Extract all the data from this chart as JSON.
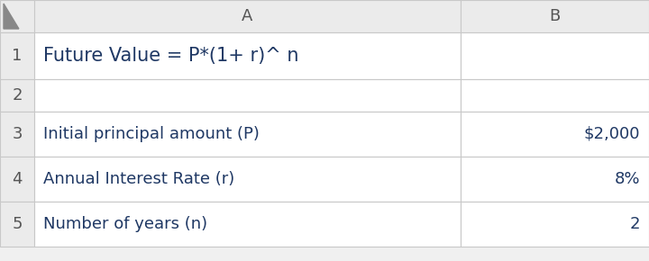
{
  "col_header_labels": [
    "A",
    "B"
  ],
  "row_numbers": [
    "1",
    "2",
    "3",
    "4",
    "5"
  ],
  "cell_data": [
    [
      "Future Value = P*(1+ r)^ n",
      ""
    ],
    [
      "",
      ""
    ],
    [
      "Initial principal amount (P)",
      "$2,000"
    ],
    [
      "Annual Interest Rate (r)",
      "8%"
    ],
    [
      "Number of years (n)",
      "2"
    ]
  ],
  "header_bg": "#ebebeb",
  "cell_bg": "#ffffff",
  "header_text_color": "#555555",
  "cell_text_color": "#1f3864",
  "row_num_color": "#555555",
  "grid_color": "#c8c8c8",
  "formula_font_size": 15,
  "data_font_size": 13,
  "header_font_size": 13,
  "corner_arrow_color": "#888888",
  "fig_bg": "#f0f0f0"
}
